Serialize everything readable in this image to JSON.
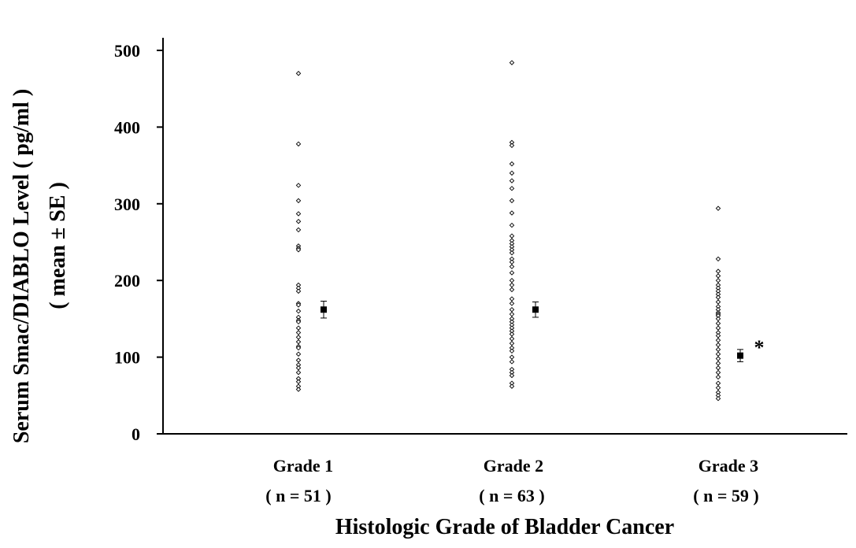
{
  "chart_data": {
    "type": "scatter",
    "title": "",
    "xlabel": "Histologic Grade of Bladder Cancer",
    "ylabel": "Serum Smac/DIABLO Level ( pg/ml )",
    "ylabel_line2": "( mean ± SE )",
    "ylim": [
      0,
      500
    ],
    "yticks": [
      "0",
      "100",
      "200",
      "300",
      "400",
      "500"
    ],
    "grid": false,
    "legend": "none",
    "categories": [
      {
        "label": "Grade 1",
        "n_label": "( n = 51 )"
      },
      {
        "label": "Grade 2",
        "n_label": "( n = 63 )"
      },
      {
        "label": "Grade 3",
        "n_label": "( n = 59 )"
      }
    ],
    "series": [
      {
        "points": [
          [
            470,
            378,
            324,
            304,
            287,
            277,
            266,
            245,
            242,
            240,
            194,
            190,
            186,
            170,
            168,
            160,
            152,
            148,
            146,
            138,
            132,
            126,
            120,
            114,
            112,
            104,
            96,
            90,
            86,
            80,
            72,
            68,
            62,
            58
          ],
          [
            484,
            380,
            376,
            352,
            340,
            330,
            320,
            304,
            288,
            272,
            258,
            252,
            248,
            244,
            240,
            236,
            228,
            224,
            218,
            210,
            200,
            194,
            188,
            176,
            170,
            162,
            156,
            150,
            146,
            142,
            138,
            134,
            130,
            124,
            118,
            112,
            108,
            100,
            94,
            84,
            80,
            76,
            66,
            62
          ],
          [
            294,
            228,
            212,
            206,
            200,
            194,
            190,
            186,
            182,
            178,
            172,
            166,
            162,
            158,
            156,
            154,
            150,
            144,
            138,
            132,
            128,
            122,
            116,
            110,
            104,
            98,
            92,
            86,
            80,
            74,
            66,
            60,
            54,
            50,
            46
          ]
        ],
        "means": [
          162,
          162,
          102
        ],
        "se": [
          11,
          10,
          8
        ]
      }
    ],
    "annotation": "*"
  }
}
